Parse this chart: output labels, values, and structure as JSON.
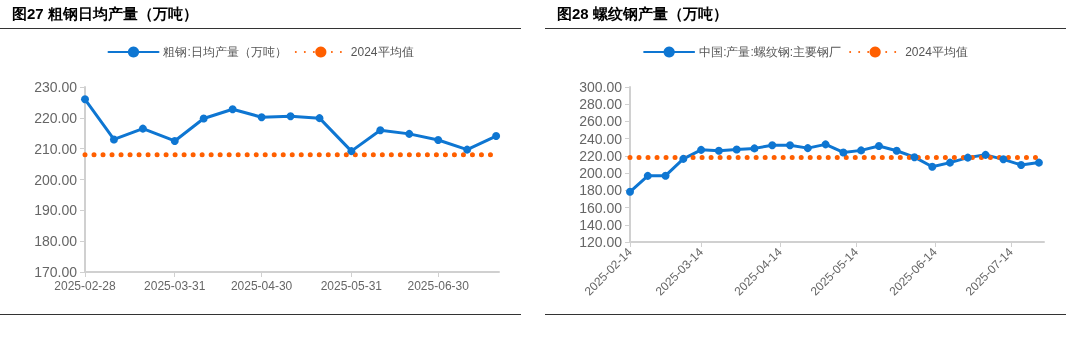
{
  "chart_data": [
    {
      "type": "line",
      "title": "图27 粗钢日均产量（万吨）",
      "x": [
        "2025-02-28",
        "2025-03-10",
        "2025-03-20",
        "2025-03-31",
        "2025-04-10",
        "2025-04-20",
        "2025-04-30",
        "2025-05-10",
        "2025-05-20",
        "2025-05-31",
        "2025-06-10",
        "2025-06-20",
        "2025-06-30",
        "2025-07-10",
        "2025-07-20"
      ],
      "series": [
        {
          "name": "粗钢:日均产量（万吨）",
          "color": "#0e76d2",
          "marker": "circle",
          "line_style": "solid",
          "values": [
            226,
            213,
            216.5,
            212.5,
            219.8,
            222.8,
            220.2,
            220.5,
            219.9,
            209.2,
            216,
            214.8,
            212.8,
            209.7,
            214.1
          ]
        },
        {
          "name": "2024平均值",
          "color": "#ff5f00",
          "marker": "none",
          "line_style": "dotted",
          "x": [
            "2025-02-28",
            "2025-07-21"
          ],
          "values": [
            208,
            208
          ]
        }
      ],
      "xlim": [
        "2025-02-28",
        "2025-07-21"
      ],
      "xticks": [
        "2025-02-28",
        "2025-03-31",
        "2025-04-30",
        "2025-05-31",
        "2025-06-30"
      ],
      "ylim": [
        170,
        230
      ],
      "yticks": [
        {
          "value": 170,
          "label": "170.00"
        },
        {
          "value": 180,
          "label": "180.00"
        },
        {
          "value": 190,
          "label": "190.00"
        },
        {
          "value": 200,
          "label": "200.00"
        },
        {
          "value": 210,
          "label": "210.00"
        },
        {
          "value": 220,
          "label": "220.00"
        },
        {
          "value": 230,
          "label": "230.00"
        }
      ],
      "grid": false,
      "legend": "top"
    },
    {
      "type": "line",
      "title": "图28 螺纹钢产量（万吨）",
      "x": [
        "2025-02-14",
        "2025-02-21",
        "2025-02-28",
        "2025-03-07",
        "2025-03-14",
        "2025-03-21",
        "2025-03-28",
        "2025-04-04",
        "2025-04-11",
        "2025-04-18",
        "2025-04-25",
        "2025-05-02",
        "2025-05-09",
        "2025-05-16",
        "2025-05-23",
        "2025-05-30",
        "2025-06-06",
        "2025-06-13",
        "2025-06-20",
        "2025-06-27",
        "2025-07-04",
        "2025-07-11",
        "2025-07-18",
        "2025-07-25"
      ],
      "series": [
        {
          "name": "中国:产量:螺纹钢:主要钢厂",
          "color": "#0e76d2",
          "marker": "circle",
          "line_style": "solid",
          "values": [
            178.3,
            196.8,
            197,
            216.5,
            227,
            226,
            227.5,
            228.7,
            232.3,
            232.3,
            229,
            233.4,
            224,
            226.4,
            231.5,
            226,
            218.5,
            207.4,
            212.2,
            218,
            221.2,
            216,
            209.4,
            212.2
          ]
        },
        {
          "name": "2024平均值",
          "color": "#ff5f00",
          "marker": "none",
          "line_style": "dotted",
          "x": [
            "2025-02-14",
            "2025-07-27"
          ],
          "values": [
            218,
            218
          ]
        }
      ],
      "xlim": [
        "2025-02-14",
        "2025-07-27"
      ],
      "xticks": [
        "2025-02-14",
        "2025-03-14",
        "2025-04-14",
        "2025-05-14",
        "2025-06-14",
        "2025-07-14"
      ],
      "ylim": [
        120,
        300
      ],
      "yticks": [
        {
          "value": 120,
          "label": "120.00"
        },
        {
          "value": 140,
          "label": "140.00"
        },
        {
          "value": 160,
          "label": "160.00"
        },
        {
          "value": 180,
          "label": "180.00"
        },
        {
          "value": 200,
          "label": "200.00"
        },
        {
          "value": 220,
          "label": "220.00"
        },
        {
          "value": 240,
          "label": "240.00"
        },
        {
          "value": 260,
          "label": "260.00"
        },
        {
          "value": 280,
          "label": "280.00"
        },
        {
          "value": 300,
          "label": "300.00"
        }
      ],
      "grid": false,
      "legend": "top"
    }
  ]
}
